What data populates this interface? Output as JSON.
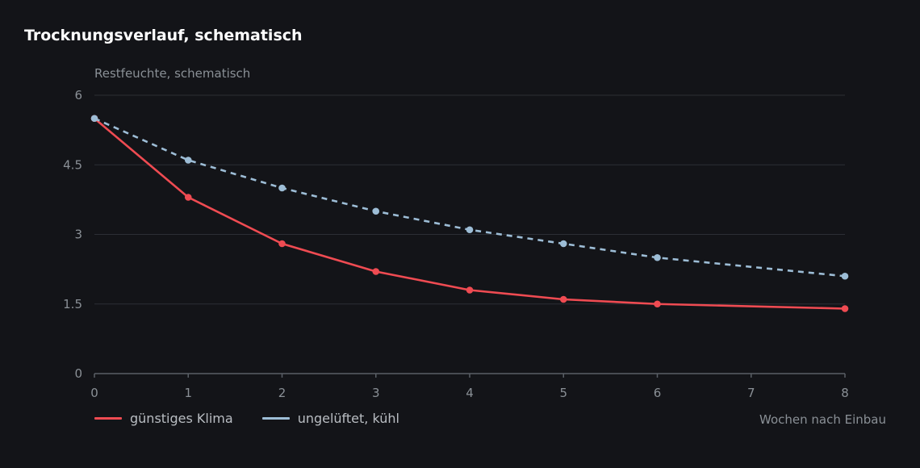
{
  "chart_data": {
    "type": "line",
    "title": "Trocknungsverlauf, schematisch",
    "ylabel": "Restfeuchte, schematisch",
    "xlabel": "Wochen nach Einbau",
    "x": [
      0,
      1,
      2,
      3,
      4,
      5,
      6,
      7,
      8
    ],
    "xticks": [
      0,
      1,
      2,
      3,
      4,
      5,
      6,
      7,
      8
    ],
    "xlim": [
      0,
      8
    ],
    "yticks": [
      0,
      1.5,
      3,
      4.5,
      6
    ],
    "ytick_labels": [
      "0",
      "1.5",
      "3",
      "4.5",
      "6"
    ],
    "ylim": [
      0,
      6
    ],
    "grid": true,
    "legend_position": "bottom-left",
    "series": [
      {
        "name": "günstiges Klima",
        "color": "#ef4b52",
        "style": "solid",
        "points": [
          {
            "x": 0,
            "y": 5.5
          },
          {
            "x": 1,
            "y": 3.8
          },
          {
            "x": 2,
            "y": 2.8
          },
          {
            "x": 3,
            "y": 2.2
          },
          {
            "x": 4,
            "y": 1.8
          },
          {
            "x": 5,
            "y": 1.6
          },
          {
            "x": 6,
            "y": 1.5
          },
          {
            "x": 8,
            "y": 1.4
          }
        ]
      },
      {
        "name": "ungelüftet, kühl",
        "color": "#9dbdd6",
        "style": "dashed",
        "points": [
          {
            "x": 0,
            "y": 5.5
          },
          {
            "x": 1,
            "y": 4.6
          },
          {
            "x": 2,
            "y": 4.0
          },
          {
            "x": 3,
            "y": 3.5
          },
          {
            "x": 4,
            "y": 3.1
          },
          {
            "x": 5,
            "y": 2.8
          },
          {
            "x": 6,
            "y": 2.5
          },
          {
            "x": 8,
            "y": 2.1
          }
        ]
      }
    ]
  }
}
